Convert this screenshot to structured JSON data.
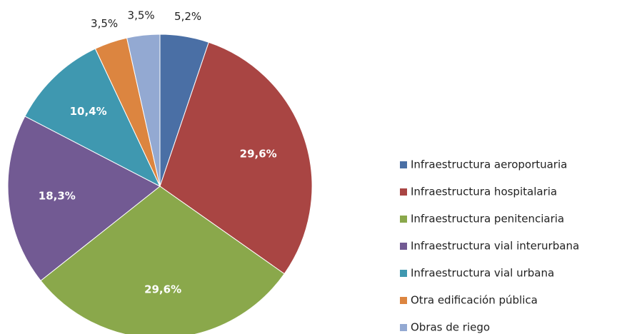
{
  "chart_data": {
    "type": "pie",
    "categories": [
      "Infraestructura aeroportuaria",
      "Infraestructura hospitalaria",
      "Infraestructura penitenciaria",
      "Infraestructura vial interurbana",
      "Infraestructura vial urbana",
      "Otra edificación pública",
      "Obras de riego"
    ],
    "values": [
      5.2,
      29.6,
      29.6,
      18.3,
      10.4,
      3.5,
      3.5
    ],
    "value_labels": [
      "5,2%",
      "29,6%",
      "29,6%",
      "18,3%",
      "10,4%",
      "3,5%",
      "3,5%"
    ],
    "colors": [
      "#4a6fa5",
      "#a94543",
      "#8aa84b",
      "#725a93",
      "#3f98b0",
      "#dc8540",
      "#93a9d2"
    ],
    "legend": "right"
  }
}
